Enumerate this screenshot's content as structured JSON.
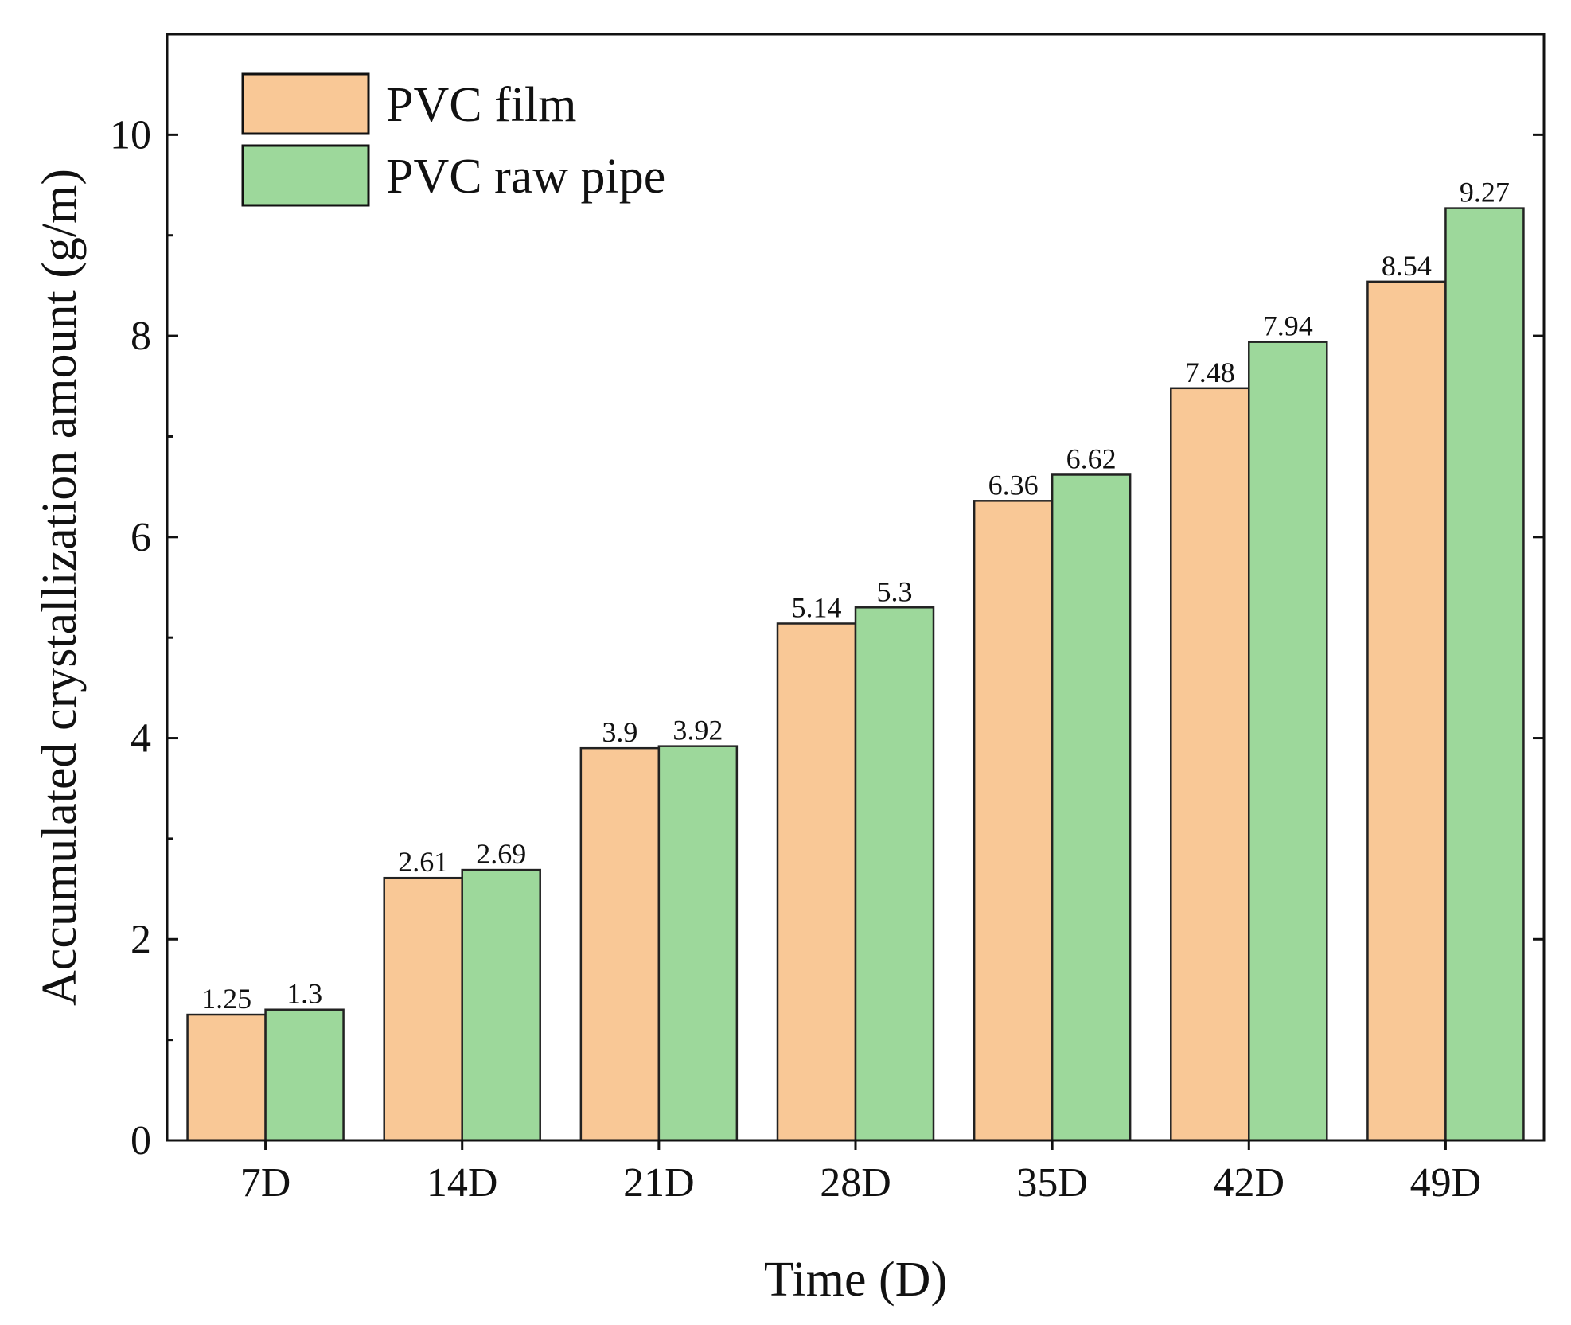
{
  "chart_data": {
    "type": "bar",
    "title": "",
    "xlabel": "Time (D)",
    "ylabel": "Accumulated crystallization amount (g/m)",
    "categories": [
      "7D",
      "14D",
      "21D",
      "28D",
      "35D",
      "42D",
      "49D"
    ],
    "series": [
      {
        "name": "PVC film",
        "color": "#F9C896",
        "values": [
          1.25,
          2.61,
          3.9,
          5.14,
          6.36,
          7.48,
          8.54
        ]
      },
      {
        "name": "PVC raw pipe",
        "color": "#9DD89B",
        "values": [
          1.3,
          2.69,
          3.92,
          5.3,
          6.62,
          7.94,
          9.27
        ]
      }
    ],
    "value_labels": [
      [
        "1.25",
        "2.61",
        "3.9",
        "5.14",
        "6.36",
        "7.48",
        "8.54"
      ],
      [
        "1.3",
        "2.69",
        "3.92",
        "5.3",
        "6.62",
        "7.94",
        "9.27"
      ]
    ],
    "ylim": [
      0,
      11
    ],
    "yticks": [
      0,
      2,
      4,
      6,
      8,
      10
    ],
    "ytick_labels": [
      "0",
      "2",
      "4",
      "6",
      "8",
      "10"
    ],
    "yminor_step": 1,
    "grid": false,
    "legend": "top-left"
  }
}
